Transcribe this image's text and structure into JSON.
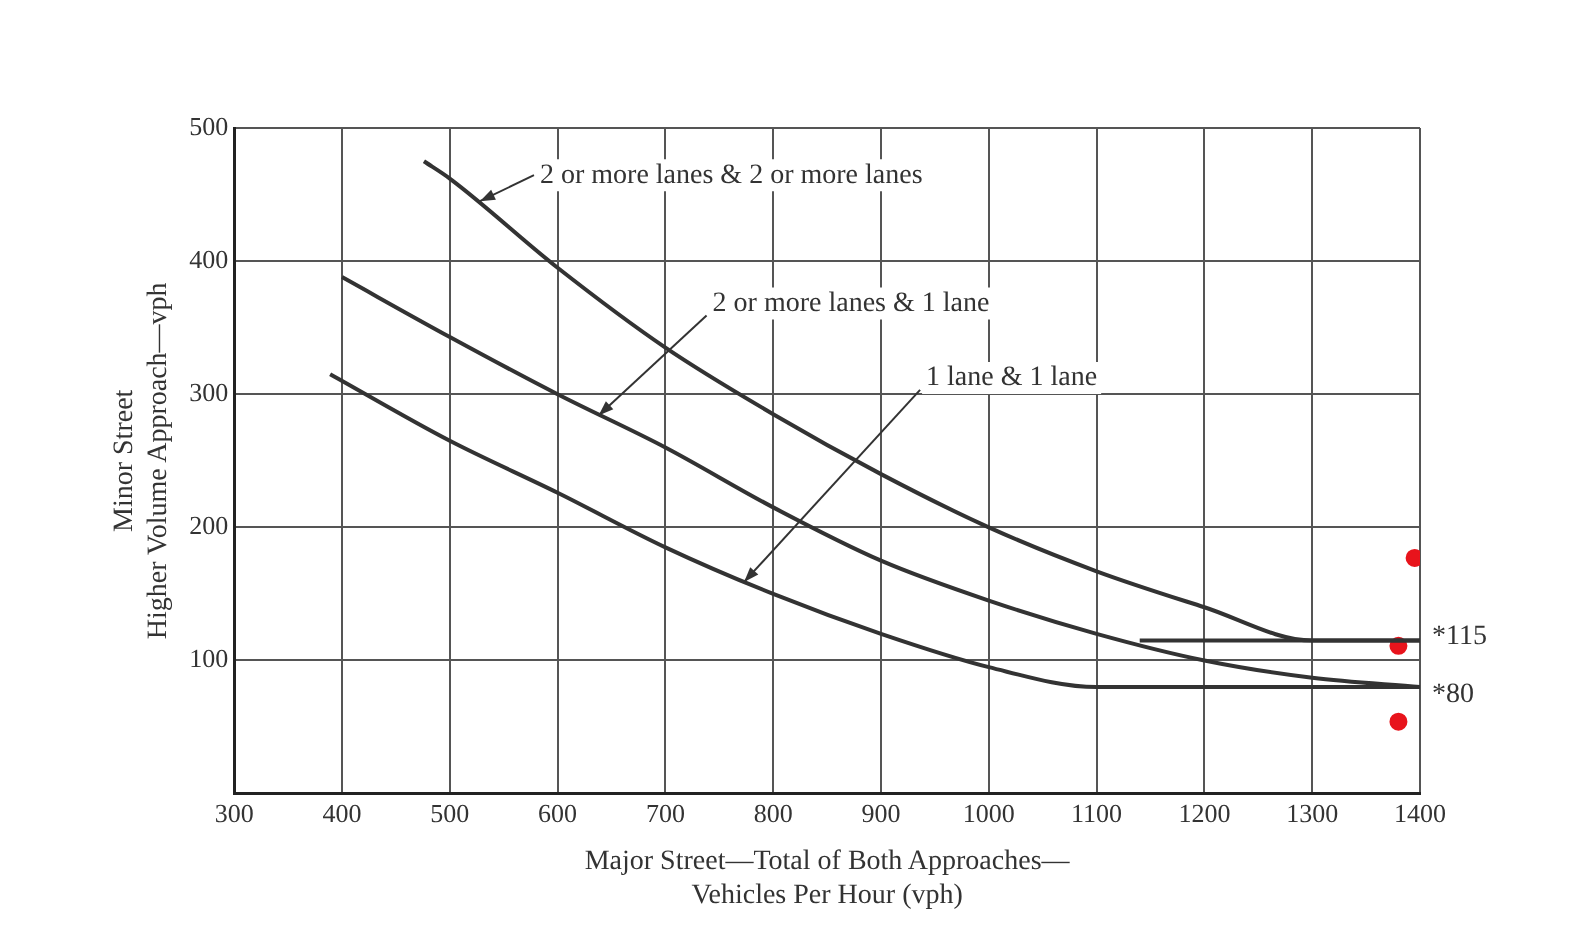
{
  "chart_data": {
    "type": "line",
    "xlabel": "Major Street—Total of Both Approaches—\nVehicles Per Hour (vph)",
    "ylabel": "Minor Street\nHigher Volume Approach—vph",
    "xlim": [
      300,
      1400
    ],
    "xticks": [
      300,
      400,
      500,
      600,
      700,
      800,
      900,
      1000,
      1100,
      1200,
      1300,
      1400
    ],
    "ylim": [
      0,
      500
    ],
    "yticks": [
      100,
      200,
      300,
      400,
      500
    ],
    "grid": true,
    "legend": false,
    "line_style": "solid",
    "series": [
      {
        "color": "#333333",
        "x": [
          476,
          500,
          600,
          700,
          800,
          900,
          1000,
          1100,
          1200,
          1300,
          1400
        ],
        "values": [
          475,
          462,
          395,
          335,
          285,
          240,
          200,
          167,
          140,
          115,
          115
        ]
      },
      {
        "color": "#333333",
        "x": [
          400,
          500,
          600,
          700,
          800,
          900,
          1000,
          1100,
          1200,
          1300,
          1400
        ],
        "values": [
          388,
          343,
          300,
          260,
          215,
          175,
          145,
          120,
          100,
          87,
          80
        ]
      },
      {
        "color": "#333333",
        "x": [
          1140,
          1300,
          1400
        ],
        "values": [
          115,
          115,
          115
        ]
      },
      {
        "color": "#333333",
        "x": [
          389,
          500,
          600,
          700,
          800,
          900,
          1000,
          1100,
          1400
        ],
        "values": [
          315,
          265,
          226,
          185,
          150,
          120,
          95,
          80,
          80
        ]
      },
      {
        "type": "scatter",
        "color": "#e8141c",
        "x": [
          1395,
          1380,
          1380
        ],
        "values": [
          177,
          111,
          54
        ]
      }
    ],
    "annotations": [
      {
        "text": "2 or more lanes & 2 or more lanes",
        "x": 528,
        "y": 445
      },
      {
        "text": "2 or more lanes & 1 lane",
        "x": 638,
        "y": 284
      },
      {
        "text": "1 lane & 1 lane",
        "x": 773,
        "y": 159
      },
      {
        "text": "*115",
        "x": 1400,
        "y": 115
      },
      {
        "text": "*80",
        "x": 1400,
        "y": 80
      }
    ]
  }
}
